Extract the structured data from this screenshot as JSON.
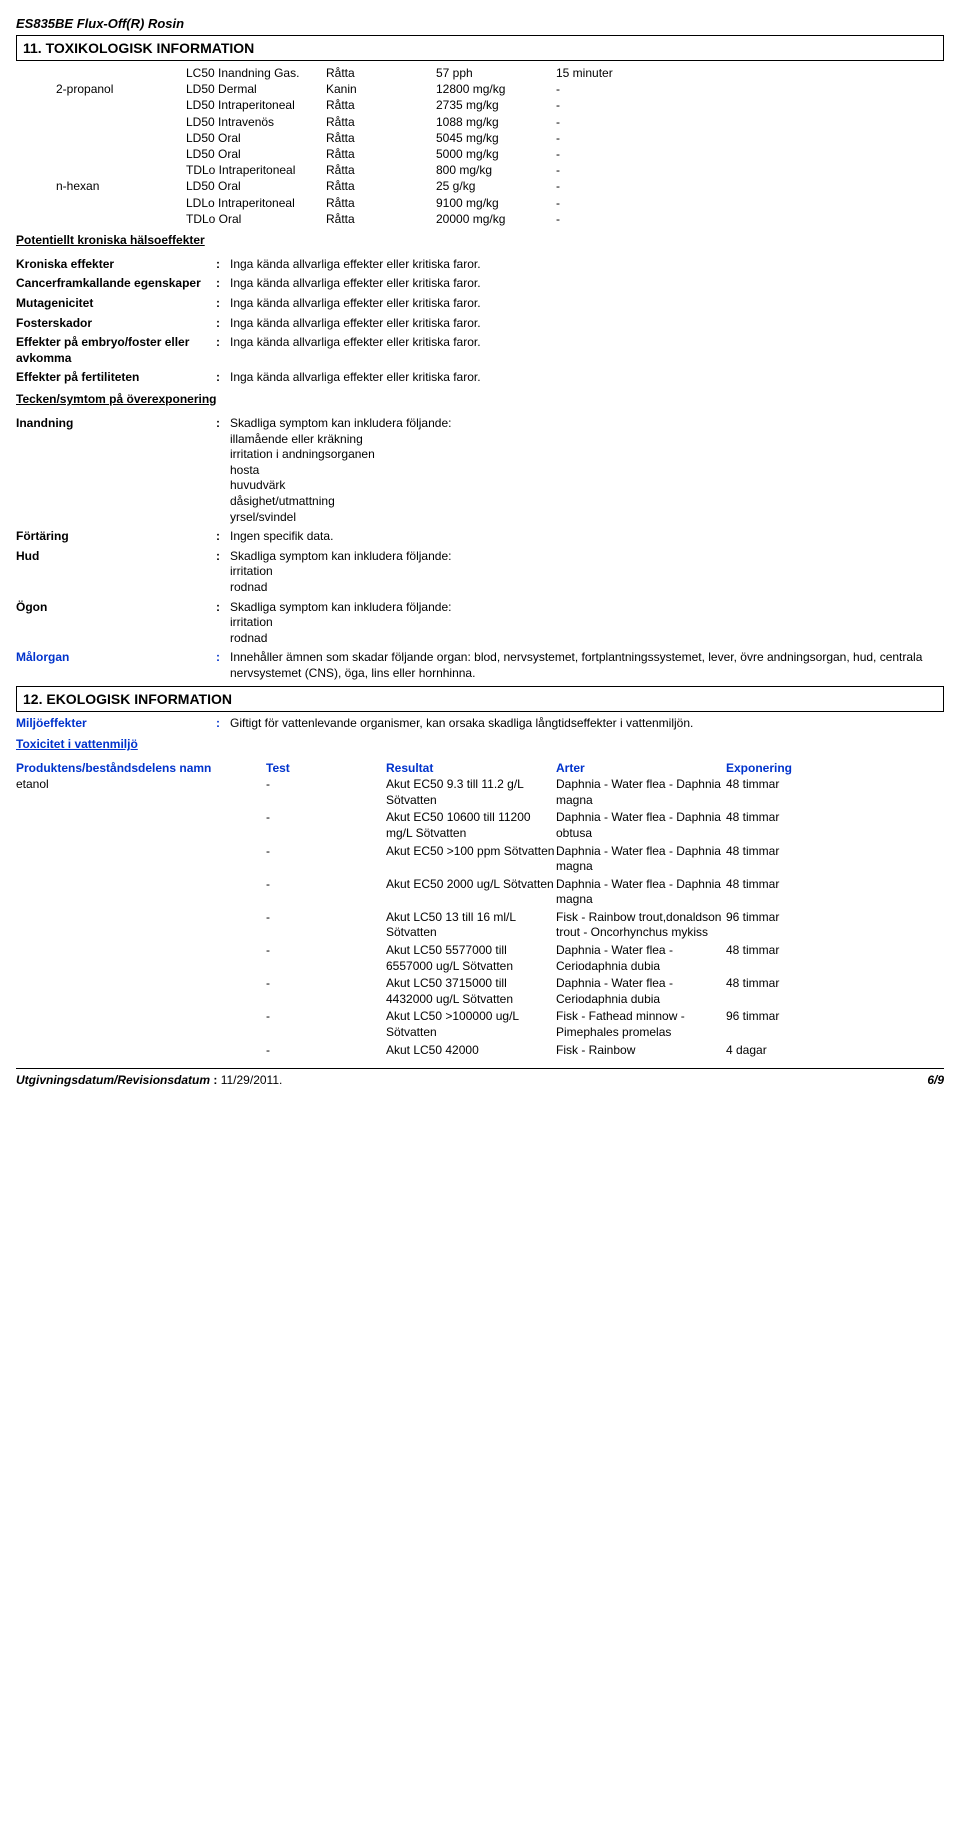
{
  "product_name": "ES835BE Flux-Off(R) Rosin",
  "section11_title": "11. TOXIKOLOGISK INFORMATION",
  "tox_rows_plain": [
    {
      "c1": "",
      "c2": "LC50 Inandning Gas.",
      "c3": "Råtta",
      "c4": "57 pph",
      "c5": "15 minuter"
    }
  ],
  "substances": [
    {
      "name": "2-propanol",
      "rows": [
        {
          "c2": "LD50 Dermal",
          "c3": "Kanin",
          "c4": "12800 mg/kg",
          "c5": "-"
        },
        {
          "c2": "LD50 Intraperitoneal",
          "c3": "Råtta",
          "c4": "2735 mg/kg",
          "c5": "-"
        },
        {
          "c2": "LD50 Intravenös",
          "c3": "Råtta",
          "c4": "1088 mg/kg",
          "c5": "-"
        },
        {
          "c2": "LD50 Oral",
          "c3": "Råtta",
          "c4": "5045 mg/kg",
          "c5": "-"
        },
        {
          "c2": "LD50 Oral",
          "c3": "Råtta",
          "c4": "5000 mg/kg",
          "c5": "-"
        },
        {
          "c2": "TDLo Intraperitoneal",
          "c3": "Råtta",
          "c4": "800 mg/kg",
          "c5": "-"
        }
      ]
    },
    {
      "name": "n-hexan",
      "rows": [
        {
          "c2": "LD50 Oral",
          "c3": "Råtta",
          "c4": "25 g/kg",
          "c5": "-"
        },
        {
          "c2": "LDLo Intraperitoneal",
          "c3": "Råtta",
          "c4": "9100 mg/kg",
          "c5": "-"
        },
        {
          "c2": "TDLo Oral",
          "c3": "Råtta",
          "c4": "20000 mg/kg",
          "c5": "-"
        }
      ]
    }
  ],
  "potent_heading": "Potentiellt kroniska hälsoeffekter",
  "chronic": [
    {
      "label": "Kroniska effekter",
      "value": "Inga kända allvarliga effekter eller kritiska faror."
    },
    {
      "label": "Cancerframkallande egenskaper",
      "value": "Inga kända allvarliga effekter eller kritiska faror."
    },
    {
      "label": "Mutagenicitet",
      "value": "Inga kända allvarliga effekter eller kritiska faror."
    },
    {
      "label": "Fosterskador",
      "value": "Inga kända allvarliga effekter eller kritiska faror."
    },
    {
      "label": "Effekter på embryo/foster eller avkomma",
      "value": "Inga kända allvarliga effekter eller kritiska faror."
    },
    {
      "label": "Effekter på fertiliteten",
      "value": "Inga kända allvarliga effekter eller kritiska faror."
    }
  ],
  "symptoms_heading": "Tecken/symtom på överexponering",
  "symptoms": [
    {
      "label": "Inandning",
      "value": "Skadliga symptom kan inkludera följande:\nillamående eller kräkning\nirritation i andningsorganen\nhosta\nhuvudvärk\ndåsighet/utmattning\nyrsel/svindel"
    },
    {
      "label": "Förtäring",
      "value": "Ingen specifik data."
    },
    {
      "label": "Hud",
      "value": "Skadliga symptom kan inkludera följande:\nirritation\nrodnad"
    },
    {
      "label": "Ögon",
      "value": "Skadliga symptom kan inkludera följande:\nirritation\nrodnad"
    }
  ],
  "malorgan_label": "Målorgan",
  "malorgan_value": "Innehåller ämnen som skadar följande organ: blod, nervsystemet, fortplantningssystemet, lever, övre andningsorgan, hud, centrala nervsystemet (CNS), öga, lins eller hornhinna.",
  "section12_title": "12. EKOLOGISK INFORMATION",
  "miljo_label": "Miljöeffekter",
  "miljo_value": "Giftigt för vattenlevande organismer, kan orsaka skadliga långtidseffekter i vattenmiljön.",
  "tox_water_heading": "Toxicitet i vattenmiljö",
  "eco_header": {
    "c1": "Produktens/beståndsdelens namn",
    "c2": "Test",
    "c3": "Resultat",
    "c4": "Arter",
    "c5": "Exponering"
  },
  "eco_substance": "etanol",
  "eco_rows": [
    {
      "c2": "-",
      "c3": "Akut EC50 9.3 till 11.2 g/L Sötvatten",
      "c4": "Daphnia - Water flea - Daphnia magna",
      "c5": "48 timmar"
    },
    {
      "c2": "-",
      "c3": "Akut EC50 10600 till 11200 mg/L Sötvatten",
      "c4": "Daphnia - Water flea - Daphnia obtusa",
      "c5": "48 timmar"
    },
    {
      "c2": "-",
      "c3": "Akut EC50 >100 ppm Sötvatten",
      "c4": "Daphnia - Water flea - Daphnia magna",
      "c5": "48 timmar"
    },
    {
      "c2": "-",
      "c3": "Akut EC50 2000 ug/L Sötvatten",
      "c4": "Daphnia - Water flea - Daphnia magna",
      "c5": "48 timmar"
    },
    {
      "c2": "-",
      "c3": "Akut LC50 13 till 16 ml/L Sötvatten",
      "c4": "Fisk - Rainbow trout,donaldson trout - Oncorhynchus mykiss",
      "c5": "96 timmar"
    },
    {
      "c2": "-",
      "c3": "Akut LC50 5577000 till 6557000 ug/L Sötvatten",
      "c4": "Daphnia - Water flea - Ceriodaphnia dubia",
      "c5": "48 timmar"
    },
    {
      "c2": "-",
      "c3": "Akut LC50 3715000 till 4432000 ug/L Sötvatten",
      "c4": "Daphnia - Water flea - Ceriodaphnia dubia",
      "c5": "48 timmar"
    },
    {
      "c2": "-",
      "c3": "Akut LC50 >100000 ug/L Sötvatten",
      "c4": "Fisk - Fathead minnow - Pimephales promelas",
      "c5": "96 timmar"
    },
    {
      "c2": "-",
      "c3": "Akut LC50 42000",
      "c4": "Fisk - Rainbow",
      "c5": "4 dagar"
    }
  ],
  "footer_left_label": "Utgivningsdatum/Revisionsdatum",
  "footer_left_value": "11/29/2011.",
  "footer_right": "6/9"
}
